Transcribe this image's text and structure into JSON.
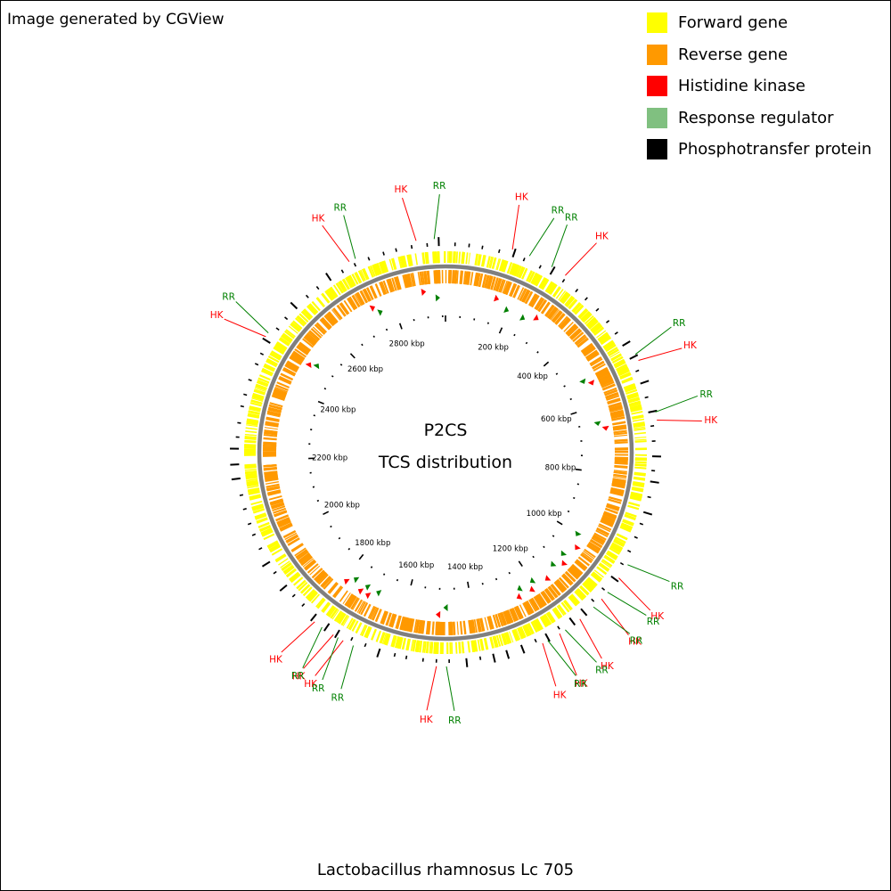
{
  "credit": "Image generated by CGView",
  "organism": "Lactobacillus rhamnosus Lc 705",
  "center": {
    "line1": "P2CS",
    "line2": "TCS distribution"
  },
  "legend": [
    {
      "label": "Forward gene",
      "color": "#ffff00",
      "icon": "yellow-square"
    },
    {
      "label": "Reverse gene",
      "color": "#ff9900",
      "icon": "orange-square"
    },
    {
      "label": "Histidine kinase",
      "color": "#ff0000",
      "icon": "red-square"
    },
    {
      "label": "Response regulator",
      "color": "#80c080",
      "icon": "green-square"
    },
    {
      "label": "Phosphotransfer protein",
      "color": "#000000",
      "icon": "black-square"
    }
  ],
  "genome_kbp": 2960,
  "tick_labels_kbp": [
    200,
    400,
    600,
    800,
    1000,
    1200,
    1400,
    1600,
    1800,
    2000,
    2200,
    2400,
    2600,
    2800
  ],
  "tick_label_text": [
    "200 kbp",
    "400 kbp",
    "600 kbp",
    "800 kbp",
    "1000 kbp",
    "1200 kbp",
    "1400 kbp",
    "1600 kbp",
    "1800 kbp",
    "2000 kbp",
    "2200 kbp",
    "2400 kbp",
    "2600 kbp",
    "2800 kbp"
  ],
  "colors": {
    "hk": "#ff0000",
    "rr": "#008000",
    "forward": "#ffff00",
    "reverse": "#ff9900",
    "backbone": "#7f7f7f"
  },
  "tcs_features": [
    {
      "type": "HK",
      "kbp": 2895
    },
    {
      "type": "RR",
      "kbp": 2935
    },
    {
      "type": "HK",
      "kbp": 150
    },
    {
      "type": "RR",
      "kbp": 190
    },
    {
      "type": "RR",
      "kbp": 245
    },
    {
      "type": "HK",
      "kbp": 280
    },
    {
      "type": "RR",
      "kbp": 515
    },
    {
      "type": "HK",
      "kbp": 530
    },
    {
      "type": "RR",
      "kbp": 650
    },
    {
      "type": "HK",
      "kbp": 668
    },
    {
      "type": "RR",
      "kbp": 1000
    },
    {
      "type": "HK",
      "kbp": 1035
    },
    {
      "type": "RR",
      "kbp": 1075
    },
    {
      "type": "HK",
      "kbp": 1095
    },
    {
      "type": "RR",
      "kbp": 1120
    },
    {
      "type": "HK",
      "kbp": 1160
    },
    {
      "type": "RR",
      "kbp": 1200
    },
    {
      "type": "HK",
      "kbp": 1215
    },
    {
      "type": "RR",
      "kbp": 1245
    },
    {
      "type": "HK",
      "kbp": 1258
    },
    {
      "type": "RR",
      "kbp": 1478
    },
    {
      "type": "HK",
      "kbp": 1500
    },
    {
      "type": "RR",
      "kbp": 1690
    },
    {
      "type": "HK",
      "kbp": 1715
    },
    {
      "type": "RR",
      "kbp": 1728
    },
    {
      "type": "HK",
      "kbp": 1740
    },
    {
      "type": "RR",
      "kbp": 1770
    },
    {
      "type": "HK",
      "kbp": 1790
    },
    {
      "type": "HK",
      "kbp": 2490
    },
    {
      "type": "RR",
      "kbp": 2500
    },
    {
      "type": "HK",
      "kbp": 2740
    },
    {
      "type": "RR",
      "kbp": 2755
    }
  ]
}
